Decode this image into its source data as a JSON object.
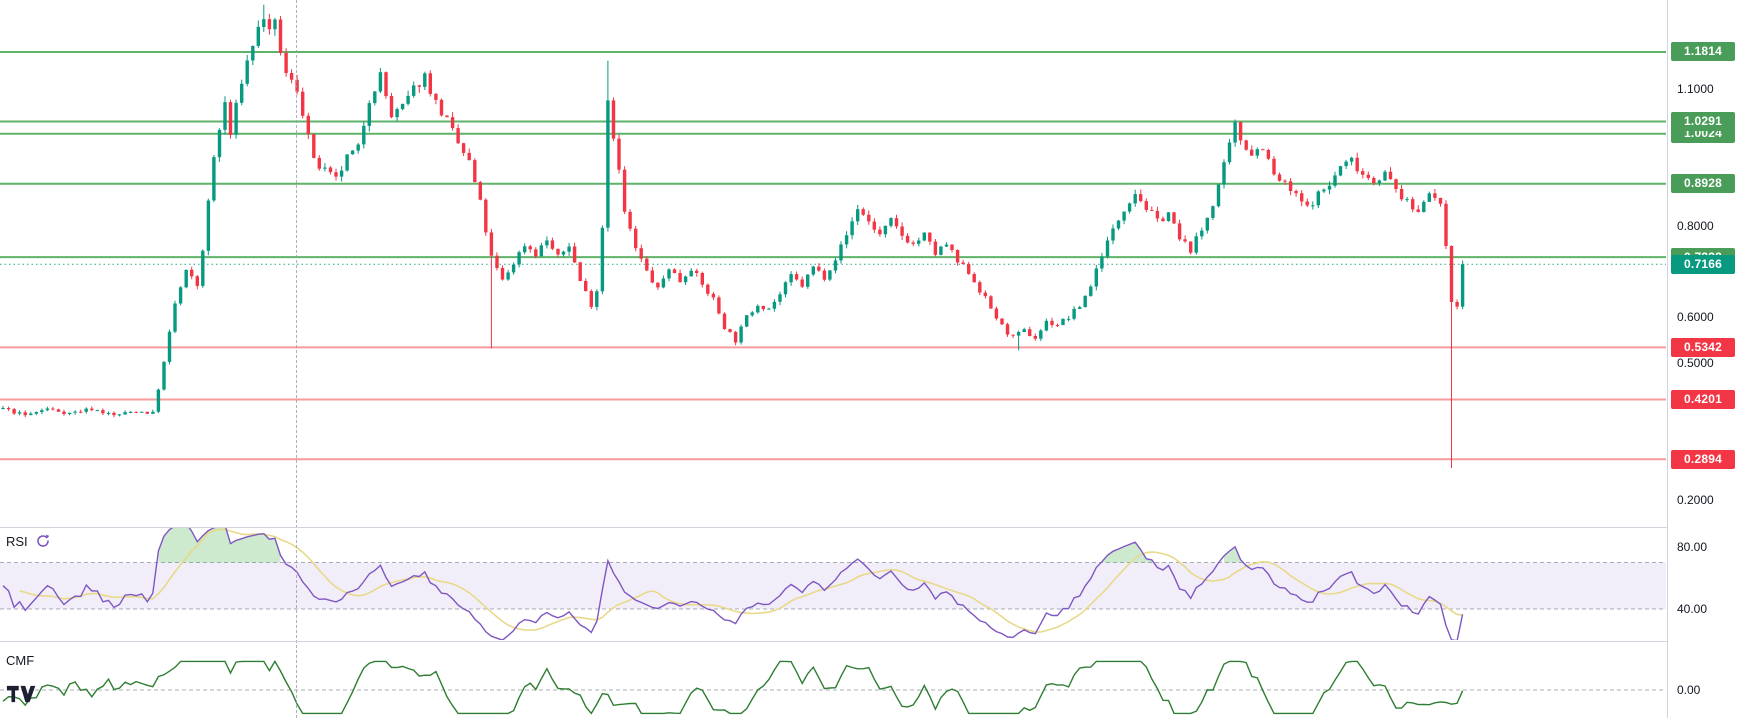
{
  "window": {
    "background": "#ffffff"
  },
  "colors": {
    "candle_up": "#089981",
    "candle_down": "#f23645",
    "level_green_line": "#5fb368",
    "level_red_line": "#f79a9c",
    "badge_green": "#4a9d58",
    "badge_red": "#f23645",
    "badge_current": "#089981",
    "rsi_line": "#7e57c2",
    "rsi_ma": "#e8d98a",
    "rsi_band_fill": "rgba(126,87,194,0.10)",
    "rsi_overbought_fill": "rgba(76,175,80,0.28)",
    "cmf_line": "#2e7d32",
    "guide_dash": "#9598a1",
    "axis_text": "#131722"
  },
  "chart_data": {
    "type": "candlestick",
    "panes": [
      "price",
      "RSI",
      "CMF"
    ],
    "price_axis_ticks": [
      {
        "label": "1.1000",
        "value": 1.1
      },
      {
        "label": "0.8000",
        "value": 0.8
      },
      {
        "label": "0.6000",
        "value": 0.6
      },
      {
        "label": "0.5000",
        "value": 0.5
      },
      {
        "label": "0.2000",
        "value": 0.2
      }
    ],
    "levels": [
      {
        "label": "1.1814",
        "price": 1.1814,
        "kind": "green"
      },
      {
        "label": "1.0024",
        "price": 1.0024,
        "kind": "green",
        "partially_hidden": true
      },
      {
        "label": "1.0291",
        "price": 1.0291,
        "kind": "green"
      },
      {
        "label": "0.8928",
        "price": 0.8928,
        "kind": "green"
      },
      {
        "label": "0.7322",
        "price": 0.7322,
        "kind": "green",
        "partially_hidden": true
      },
      {
        "label": "0.5342",
        "price": 0.5342,
        "kind": "red"
      },
      {
        "label": "0.4201",
        "price": 0.4201,
        "kind": "red"
      },
      {
        "label": "0.2894",
        "price": 0.2894,
        "kind": "red"
      }
    ],
    "last_price": {
      "label": "0.7166",
      "value": 0.7166
    },
    "main": {
      "candles_count": 264,
      "price_range_visible": [
        0.2,
        1.29
      ],
      "waypoints": [
        [
          0,
          0.4
        ],
        [
          4,
          0.385
        ],
        [
          8,
          0.4
        ],
        [
          12,
          0.39
        ],
        [
          16,
          0.4
        ],
        [
          20,
          0.385
        ],
        [
          24,
          0.395
        ],
        [
          27,
          0.39
        ],
        [
          29,
          0.5
        ],
        [
          31,
          0.63
        ],
        [
          33,
          0.7
        ],
        [
          35,
          0.67
        ],
        [
          36,
          0.75
        ],
        [
          38,
          0.95
        ],
        [
          40,
          1.07
        ],
        [
          41,
          1.0
        ],
        [
          43,
          1.12
        ],
        [
          45,
          1.2
        ],
        [
          47,
          1.26
        ],
        [
          48,
          1.22
        ],
        [
          49,
          1.24
        ],
        [
          51,
          1.13
        ],
        [
          53,
          1.1
        ],
        [
          55,
          1.0
        ],
        [
          56,
          0.94
        ],
        [
          58,
          0.92
        ],
        [
          60,
          0.9
        ],
        [
          62,
          0.95
        ],
        [
          64,
          0.97
        ],
        [
          66,
          1.08
        ],
        [
          68,
          1.13
        ],
        [
          70,
          1.04
        ],
        [
          72,
          1.06
        ],
        [
          74,
          1.1
        ],
        [
          76,
          1.13
        ],
        [
          78,
          1.07
        ],
        [
          80,
          1.03
        ],
        [
          82,
          0.98
        ],
        [
          84,
          0.94
        ],
        [
          86,
          0.85
        ],
        [
          88,
          0.73
        ],
        [
          90,
          0.68
        ],
        [
          92,
          0.72
        ],
        [
          94,
          0.76
        ],
        [
          96,
          0.74
        ],
        [
          98,
          0.77
        ],
        [
          100,
          0.73
        ],
        [
          102,
          0.76
        ],
        [
          104,
          0.68
        ],
        [
          106,
          0.63
        ],
        [
          107,
          0.66
        ],
        [
          108,
          0.8
        ],
        [
          109,
          1.08
        ],
        [
          110,
          1.0
        ],
        [
          111,
          0.92
        ],
        [
          112,
          0.83
        ],
        [
          114,
          0.75
        ],
        [
          116,
          0.7
        ],
        [
          118,
          0.66
        ],
        [
          120,
          0.71
        ],
        [
          122,
          0.68
        ],
        [
          124,
          0.71
        ],
        [
          126,
          0.67
        ],
        [
          128,
          0.64
        ],
        [
          130,
          0.58
        ],
        [
          132,
          0.55
        ],
        [
          134,
          0.6
        ],
        [
          136,
          0.63
        ],
        [
          138,
          0.62
        ],
        [
          140,
          0.65
        ],
        [
          142,
          0.69
        ],
        [
          144,
          0.67
        ],
        [
          146,
          0.71
        ],
        [
          148,
          0.69
        ],
        [
          150,
          0.73
        ],
        [
          152,
          0.78
        ],
        [
          154,
          0.84
        ],
        [
          156,
          0.81
        ],
        [
          158,
          0.78
        ],
        [
          160,
          0.81
        ],
        [
          162,
          0.78
        ],
        [
          164,
          0.76
        ],
        [
          166,
          0.78
        ],
        [
          168,
          0.74
        ],
        [
          170,
          0.76
        ],
        [
          172,
          0.72
        ],
        [
          174,
          0.7
        ],
        [
          176,
          0.66
        ],
        [
          178,
          0.62
        ],
        [
          180,
          0.58
        ],
        [
          182,
          0.555
        ],
        [
          184,
          0.57
        ],
        [
          186,
          0.555
        ],
        [
          188,
          0.59
        ],
        [
          190,
          0.585
        ],
        [
          192,
          0.6
        ],
        [
          194,
          0.625
        ],
        [
          196,
          0.67
        ],
        [
          198,
          0.74
        ],
        [
          200,
          0.79
        ],
        [
          202,
          0.84
        ],
        [
          204,
          0.875
        ],
        [
          206,
          0.84
        ],
        [
          208,
          0.81
        ],
        [
          210,
          0.83
        ],
        [
          212,
          0.77
        ],
        [
          214,
          0.75
        ],
        [
          216,
          0.79
        ],
        [
          218,
          0.85
        ],
        [
          220,
          0.93
        ],
        [
          222,
          1.02
        ],
        [
          223,
          0.99
        ],
        [
          225,
          0.96
        ],
        [
          227,
          0.975
        ],
        [
          229,
          0.91
        ],
        [
          231,
          0.89
        ],
        [
          233,
          0.865
        ],
        [
          235,
          0.84
        ],
        [
          237,
          0.87
        ],
        [
          239,
          0.89
        ],
        [
          241,
          0.93
        ],
        [
          243,
          0.945
        ],
        [
          245,
          0.915
        ],
        [
          247,
          0.9
        ],
        [
          249,
          0.915
        ],
        [
          251,
          0.88
        ],
        [
          253,
          0.85
        ],
        [
          255,
          0.83
        ],
        [
          256,
          0.86
        ],
        [
          257,
          0.88
        ],
        [
          258,
          0.86
        ],
        [
          259,
          0.84
        ],
        [
          260,
          0.76
        ],
        [
          261,
          0.64
        ],
        [
          262,
          0.62
        ],
        [
          263,
          0.7166
        ]
      ],
      "special_wicks": [
        [
          47,
          1.285,
          null
        ],
        [
          88,
          null,
          0.532
        ],
        [
          109,
          1.162,
          null
        ],
        [
          183,
          null,
          0.528
        ],
        [
          261,
          null,
          0.27
        ]
      ]
    },
    "rsi": {
      "label": "RSI",
      "period": 14,
      "guides": [
        70,
        40
      ],
      "band": [
        70,
        40
      ],
      "ticks": [
        {
          "label": "80.00",
          "value": 80
        },
        {
          "label": "40.00",
          "value": 40
        }
      ]
    },
    "cmf": {
      "label": "CMF",
      "guides": [
        0
      ],
      "ticks": [
        {
          "label": "0.00",
          "value": 0
        }
      ]
    }
  }
}
